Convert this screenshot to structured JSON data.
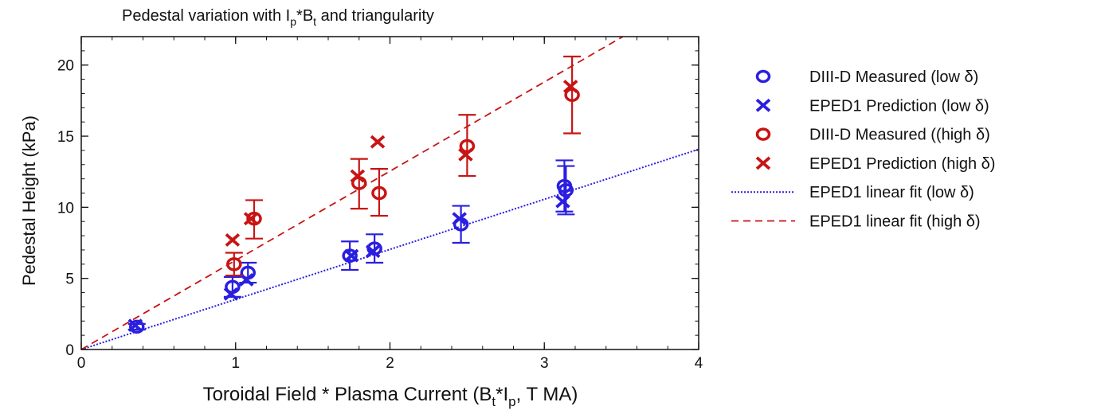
{
  "chart_data": {
    "type": "scatter",
    "title": {
      "prefix": "Pedestal variation with I",
      "sub1": "p",
      "mid": "*B",
      "sub2": "t",
      "suffix": " and triangularity"
    },
    "xlabel": {
      "prefix": "Toroidal Field * Plasma Current (B",
      "sub1": "t",
      "mid": "*I",
      "sub2": "p",
      "suffix": ", T MA)"
    },
    "ylabel": "Pedestal Height (kPa)",
    "xlim": [
      0,
      4
    ],
    "ylim": [
      0,
      22
    ],
    "x_ticks": [
      "0",
      "1",
      "2",
      "3",
      "4"
    ],
    "y_ticks": [
      "0",
      "5",
      "10",
      "15",
      "20"
    ],
    "grid": false,
    "legend_position": "right",
    "series": [
      {
        "name": "DIII-D Measured (low δ)",
        "marker": "circle",
        "color": "#2a1fe0",
        "points": [
          {
            "x": 0.36,
            "y": 1.6,
            "lo": 1.4,
            "hi": 1.8
          },
          {
            "x": 0.98,
            "y": 4.4,
            "lo": 3.7,
            "hi": 5.1
          },
          {
            "x": 1.08,
            "y": 5.4,
            "lo": 4.7,
            "hi": 6.1
          },
          {
            "x": 1.74,
            "y": 6.6,
            "lo": 5.6,
            "hi": 7.6
          },
          {
            "x": 1.9,
            "y": 7.1,
            "lo": 6.1,
            "hi": 8.1
          },
          {
            "x": 2.46,
            "y": 8.8,
            "lo": 7.5,
            "hi": 10.1
          },
          {
            "x": 3.13,
            "y": 11.5,
            "lo": 9.7,
            "hi": 13.3
          },
          {
            "x": 3.14,
            "y": 11.2,
            "lo": 9.5,
            "hi": 12.9
          }
        ]
      },
      {
        "name": "EPED1 Prediction (low δ)",
        "marker": "x",
        "color": "#2a1fe0",
        "points": [
          {
            "x": 0.35,
            "y": 1.7
          },
          {
            "x": 0.97,
            "y": 3.9
          },
          {
            "x": 1.07,
            "y": 4.9
          },
          {
            "x": 1.75,
            "y": 6.6
          },
          {
            "x": 1.89,
            "y": 6.9
          },
          {
            "x": 2.45,
            "y": 9.2
          },
          {
            "x": 3.12,
            "y": 10.4
          }
        ]
      },
      {
        "name": "DIII-D Measured ((high δ)",
        "marker": "circle",
        "color": "#c81414",
        "points": [
          {
            "x": 0.99,
            "y": 6.0,
            "lo": 5.2,
            "hi": 6.8
          },
          {
            "x": 1.12,
            "y": 9.2,
            "lo": 7.8,
            "hi": 10.5
          },
          {
            "x": 1.8,
            "y": 11.7,
            "lo": 9.9,
            "hi": 13.4
          },
          {
            "x": 1.93,
            "y": 11.0,
            "lo": 9.4,
            "hi": 12.7
          },
          {
            "x": 2.5,
            "y": 14.3,
            "lo": 12.2,
            "hi": 16.5
          },
          {
            "x": 3.18,
            "y": 17.9,
            "lo": 15.2,
            "hi": 20.6
          }
        ]
      },
      {
        "name": "EPED1 Prediction (high δ)",
        "marker": "x",
        "color": "#c81414",
        "points": [
          {
            "x": 0.98,
            "y": 7.7
          },
          {
            "x": 1.1,
            "y": 9.2
          },
          {
            "x": 1.79,
            "y": 12.2
          },
          {
            "x": 1.92,
            "y": 14.6
          },
          {
            "x": 2.49,
            "y": 13.7
          },
          {
            "x": 3.17,
            "y": 18.5
          }
        ]
      }
    ],
    "fits": [
      {
        "name": "EPED1 linear fit (low δ)",
        "style": "dotted",
        "color": "#2a1fe0",
        "slope": 3.52
      },
      {
        "name": "EPED1 linear fit (high δ)",
        "style": "dashed",
        "color": "#c81414",
        "slope": 6.27
      }
    ]
  }
}
